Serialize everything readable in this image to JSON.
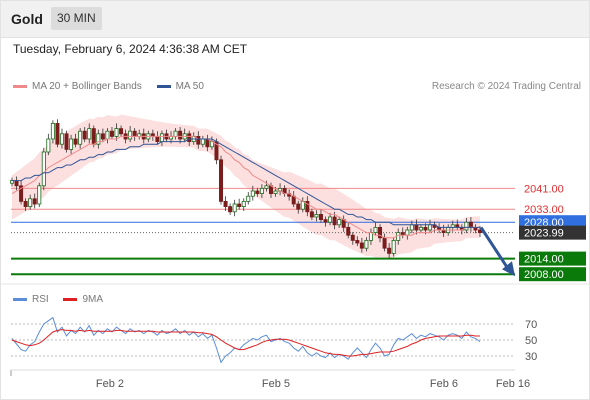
{
  "header": {
    "symbol": "Gold",
    "interval": "30 MIN"
  },
  "timestamp": "Tuesday, February 6, 2024 4:36:38 AM CET",
  "legend": {
    "ma20": {
      "label": "MA 20 + Bollinger Bands",
      "color": "#f08a8a"
    },
    "ma50": {
      "label": "MA 50",
      "color": "#2f5597"
    }
  },
  "credit": "Research © 2024 Trading Central",
  "rsi_legend": {
    "rsi": {
      "label": "RSI",
      "color": "#5b8dd9"
    },
    "ma9": {
      "label": "9MA",
      "color": "#e02020"
    }
  },
  "chart_data": [
    {
      "type": "candlestick",
      "x_labels": [
        "Feb 2",
        "Feb 5",
        "Feb 6",
        "Feb 16"
      ],
      "y_range": [
        2005,
        2075
      ],
      "close_series": [
        2044,
        2042,
        2036,
        2034,
        2037,
        2035,
        2042,
        2055,
        2060,
        2066,
        2058,
        2062,
        2056,
        2060,
        2058,
        2063,
        2060,
        2064,
        2058,
        2062,
        2060,
        2063,
        2061,
        2064,
        2062,
        2060,
        2063,
        2061,
        2062,
        2060,
        2062,
        2061,
        2059,
        2062,
        2060,
        2061,
        2063,
        2060,
        2062,
        2059,
        2061,
        2058,
        2060,
        2057,
        2059,
        2052,
        2036,
        2034,
        2032,
        2035,
        2034,
        2036,
        2038,
        2040,
        2039,
        2041,
        2042,
        2039,
        2040,
        2041,
        2039,
        2038,
        2035,
        2033,
        2036,
        2032,
        2030,
        2031,
        2029,
        2028,
        2030,
        2027,
        2029,
        2026,
        2023,
        2021,
        2020,
        2018,
        2021,
        2024,
        2026,
        2022,
        2018,
        2016,
        2021,
        2024,
        2023,
        2025,
        2027,
        2025,
        2026,
        2025,
        2027,
        2026,
        2025,
        2024,
        2026,
        2027,
        2026,
        2025,
        2028,
        2026,
        2025,
        2024
      ],
      "ma20": [
        2039,
        2040,
        2041,
        2042,
        2043,
        2044,
        2046,
        2047,
        2049,
        2050,
        2051,
        2052,
        2053,
        2054,
        2055,
        2056,
        2057,
        2058,
        2058,
        2059,
        2059,
        2060,
        2060,
        2060,
        2061,
        2061,
        2061,
        2061,
        2061,
        2061,
        2061,
        2061,
        2061,
        2061,
        2061,
        2061,
        2061,
        2061,
        2061,
        2061,
        2061,
        2060,
        2060,
        2060,
        2059,
        2058,
        2057,
        2055,
        2054,
        2052,
        2051,
        2049,
        2048,
        2046,
        2045,
        2044,
        2043,
        2042,
        2041,
        2040,
        2039,
        2039,
        2038,
        2037,
        2036,
        2035,
        2034,
        2033,
        2033,
        2032,
        2031,
        2031,
        2030,
        2029,
        2028,
        2027,
        2026,
        2025,
        2024,
        2024,
        2023,
        2023,
        2022,
        2022,
        2022,
        2023,
        2023,
        2023,
        2023,
        2024,
        2024,
        2024,
        2024,
        2025,
        2025,
        2025,
        2025,
        2025,
        2025,
        2025,
        2026,
        2026,
        2026,
        2026
      ],
      "ma50": [
        2044,
        2044,
        2044,
        2045,
        2045,
        2046,
        2046,
        2047,
        2047,
        2048,
        2049,
        2049,
        2050,
        2050,
        2051,
        2052,
        2052,
        2053,
        2053,
        2054,
        2054,
        2055,
        2055,
        2056,
        2056,
        2056,
        2057,
        2057,
        2057,
        2058,
        2058,
        2058,
        2058,
        2059,
        2059,
        2059,
        2059,
        2059,
        2059,
        2060,
        2060,
        2060,
        2060,
        2060,
        2060,
        2059,
        2058,
        2057,
        2056,
        2055,
        2054,
        2053,
        2052,
        2051,
        2050,
        2049,
        2048,
        2047,
        2046,
        2045,
        2044,
        2043,
        2042,
        2041,
        2040,
        2039,
        2038,
        2037,
        2036,
        2035,
        2034,
        2033,
        2033,
        2032,
        2031,
        2031,
        2030,
        2030,
        2029,
        2029,
        2028,
        2028,
        2028,
        2028,
        2027,
        2027,
        2027,
        2027,
        2027,
        2027,
        2027,
        2027,
        2027,
        2027,
        2026,
        2026,
        2026,
        2026,
        2026,
        2026,
        2026,
        2026,
        2026,
        2026
      ],
      "levels": [
        {
          "value": 2041.0,
          "label": "2041.00",
          "color": "#f08a8a",
          "style": "resistance"
        },
        {
          "value": 2033.0,
          "label": "2033.00",
          "color": "#f08a8a",
          "style": "resistance"
        },
        {
          "value": 2028.0,
          "label": "2028.00",
          "color": "#2f6fe0",
          "style": "pivot"
        },
        {
          "value": 2023.99,
          "label": "2023.99",
          "color": "#333333",
          "style": "current"
        },
        {
          "value": 2014.0,
          "label": "2014.00",
          "color": "#0a7a0a",
          "style": "support"
        },
        {
          "value": 2008.0,
          "label": "2008.00",
          "color": "#0a7a0a",
          "style": "support"
        }
      ],
      "forecast_arrow": {
        "from": 2026,
        "to": 2008
      }
    },
    {
      "type": "line",
      "title": "RSI",
      "y_ticks": [
        70,
        50,
        30
      ],
      "y_range": [
        15,
        85
      ],
      "series": [
        {
          "name": "RSI",
          "color": "#5b8dd9",
          "values": [
            52,
            45,
            38,
            36,
            44,
            48,
            60,
            70,
            74,
            78,
            60,
            66,
            55,
            62,
            58,
            66,
            60,
            68,
            56,
            62,
            58,
            64,
            60,
            66,
            62,
            58,
            64,
            60,
            62,
            58,
            62,
            60,
            56,
            62,
            58,
            60,
            64,
            58,
            62,
            56,
            60,
            54,
            58,
            52,
            56,
            40,
            22,
            30,
            34,
            40,
            38,
            44,
            48,
            52,
            50,
            54,
            56,
            48,
            50,
            52,
            48,
            46,
            40,
            36,
            42,
            34,
            30,
            34,
            30,
            28,
            34,
            28,
            32,
            30,
            26,
            34,
            40,
            34,
            28,
            38,
            46,
            40,
            30,
            32,
            44,
            52,
            50,
            54,
            58,
            52,
            56,
            54,
            58,
            56,
            54,
            50,
            56,
            58,
            56,
            52,
            60,
            54,
            52,
            48
          ]
        },
        {
          "name": "9MA",
          "color": "#e02020",
          "values": [
            50,
            48,
            46,
            44,
            43,
            44,
            46,
            50,
            55,
            60,
            62,
            63,
            62,
            62,
            61,
            62,
            61,
            62,
            61,
            61,
            61,
            61,
            61,
            62,
            62,
            61,
            61,
            61,
            61,
            61,
            61,
            61,
            60,
            60,
            60,
            60,
            60,
            60,
            60,
            60,
            60,
            59,
            59,
            58,
            57,
            54,
            50,
            46,
            43,
            40,
            38,
            38,
            40,
            42,
            44,
            47,
            49,
            50,
            51,
            51,
            51,
            50,
            48,
            46,
            44,
            42,
            40,
            38,
            36,
            34,
            33,
            32,
            32,
            31,
            30,
            30,
            31,
            32,
            32,
            33,
            34,
            35,
            35,
            35,
            36,
            38,
            40,
            42,
            45,
            47,
            50,
            52,
            53,
            54,
            55,
            55,
            55,
            55,
            55,
            55,
            56,
            56,
            55,
            55
          ]
        }
      ]
    }
  ]
}
